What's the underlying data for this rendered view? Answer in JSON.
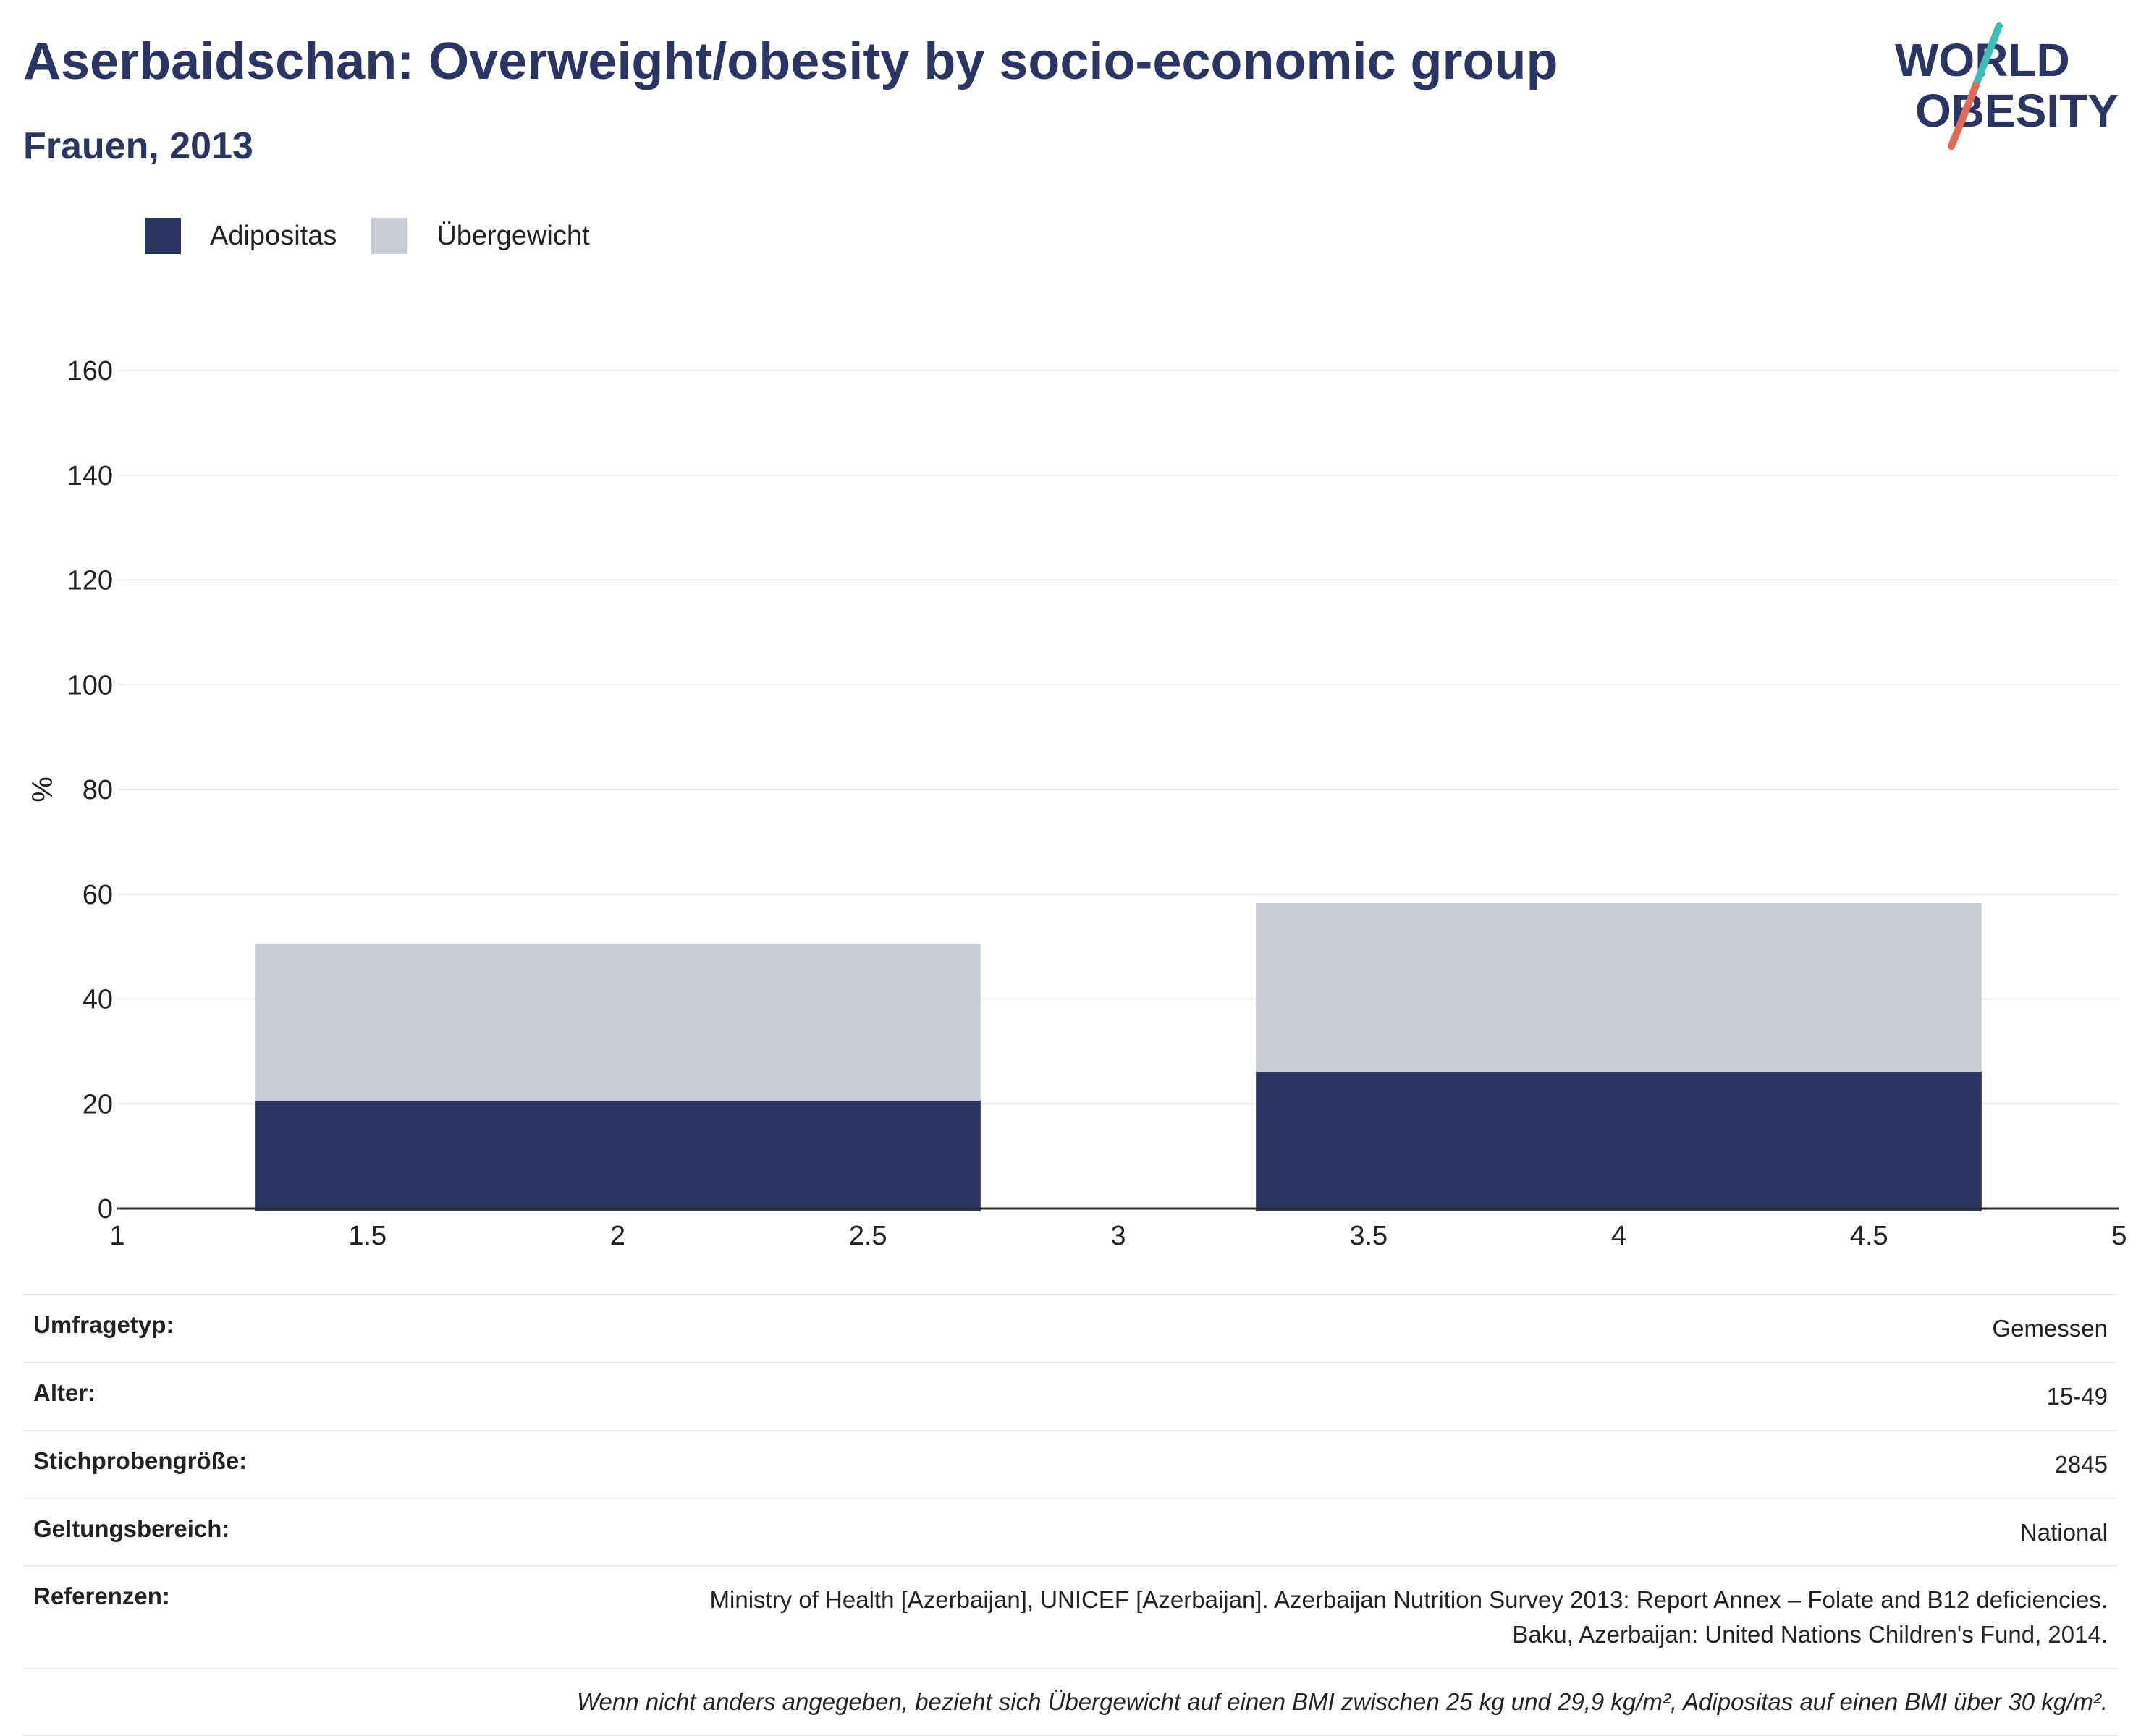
{
  "header": {
    "title": "Aserbaidschan: Overweight/obesity by socio-economic group",
    "subtitle": "Frauen, 2013"
  },
  "logo": {
    "line1": "WORLD",
    "line2": "OBESITY",
    "colors": {
      "text": "#2a3563",
      "slash_top": "#3dbdb7",
      "slash_bottom": "#e06a57"
    }
  },
  "chart_data": {
    "type": "bar",
    "stacked": true,
    "x": [
      2,
      4
    ],
    "bar_width": 1.45,
    "xlim": [
      1,
      5
    ],
    "ylim": [
      0,
      160
    ],
    "xticks": [
      1,
      1.5,
      2,
      2.5,
      3,
      3.5,
      4,
      4.5,
      5
    ],
    "yticks": [
      0,
      20,
      40,
      60,
      80,
      100,
      120,
      140,
      160
    ],
    "ylabel": "%",
    "xlabel": "",
    "grid": true,
    "legend_position": "top-left",
    "series": [
      {
        "name": "Adipositas",
        "values": [
          20.6,
          26.1
        ],
        "color": "#2a3563"
      },
      {
        "name": "Übergewicht",
        "values": [
          30.0,
          32.2
        ],
        "color": "#c9cbd7"
      }
    ]
  },
  "info": {
    "rows": [
      {
        "label": "Umfragetyp:",
        "value": "Gemessen"
      },
      {
        "label": "Alter:",
        "value": "15-49"
      },
      {
        "label": "Stichprobengröße:",
        "value": "2845"
      },
      {
        "label": "Geltungsbereich:",
        "value": "National"
      }
    ],
    "references_label": "Referenzen:",
    "references_line1": "Ministry of Health [Azerbaijan], UNICEF [Azerbaijan]. Azerbaijan Nutrition Survey 2013: Report Annex – Folate and B12 deficiencies.",
    "references_line2": "Baku, Azerbaijan: United Nations Children's Fund, 2014.",
    "note": "Wenn nicht anders angegeben, bezieht sich Übergewicht auf einen BMI zwischen 25 kg und 29,9 kg/m², Adipositas auf einen BMI über 30 kg/m²."
  }
}
